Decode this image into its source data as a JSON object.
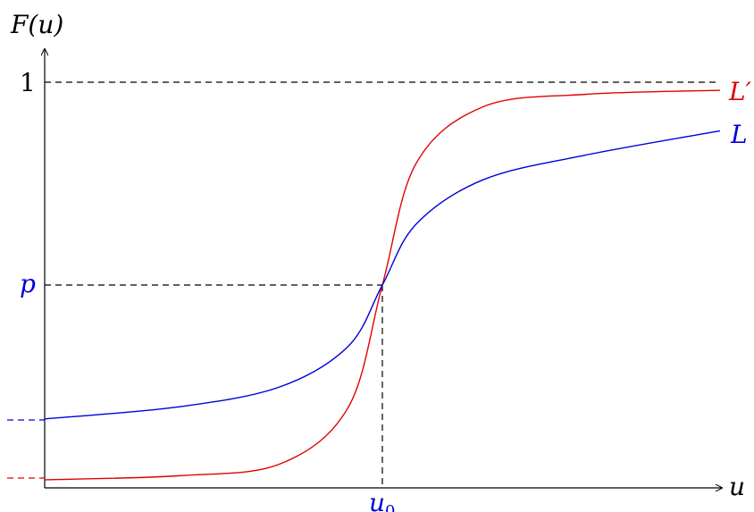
{
  "labels": {
    "y_axis": "F(u)",
    "x_axis": "u",
    "one": "1",
    "p": "p",
    "u0_base": "u",
    "u0_sub": "0",
    "curve_red": "L′",
    "curve_blue": "L"
  },
  "colors": {
    "axis": "#000000",
    "red": "#e00000",
    "blue": "#0000d8",
    "dash": "#000000"
  },
  "chart_data": {
    "type": "line",
    "x_domain": [
      0,
      1
    ],
    "y_domain": [
      0,
      1
    ],
    "u0": 0.5,
    "p": 0.5,
    "series": [
      {
        "name": "L′",
        "color": "#e00000",
        "x": [
          0.0,
          0.2,
          0.35,
          0.45,
          0.5,
          0.55,
          0.65,
          0.8,
          1.0
        ],
        "y": [
          0.02,
          0.03,
          0.06,
          0.2,
          0.5,
          0.8,
          0.94,
          0.97,
          0.98
        ]
      },
      {
        "name": "L",
        "color": "#0000d8",
        "x": [
          0.0,
          0.2,
          0.35,
          0.45,
          0.5,
          0.55,
          0.65,
          0.8,
          1.0
        ],
        "y": [
          0.17,
          0.2,
          0.25,
          0.35,
          0.5,
          0.65,
          0.76,
          0.82,
          0.88
        ]
      }
    ]
  }
}
